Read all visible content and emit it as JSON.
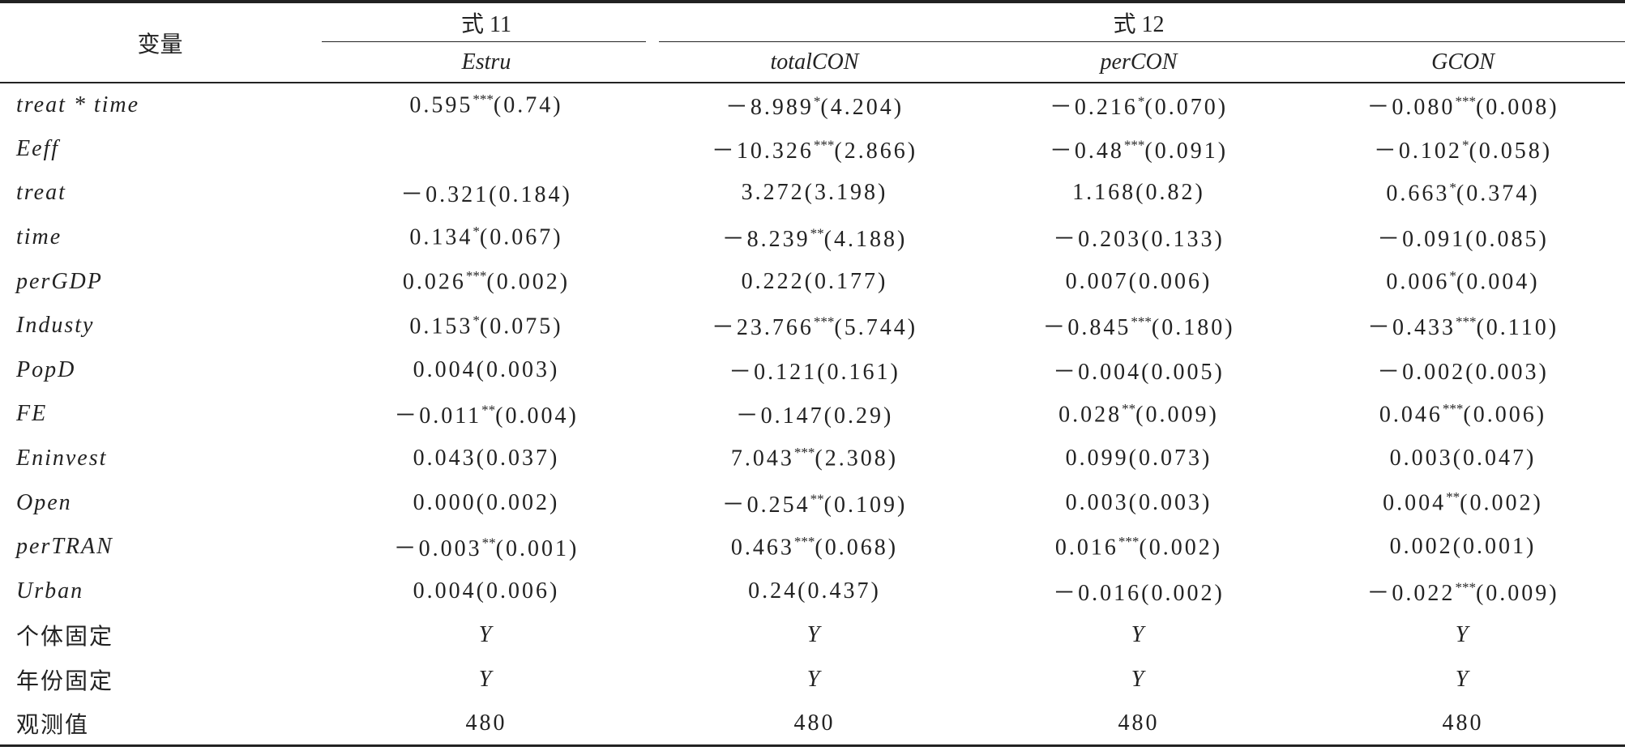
{
  "table": {
    "header": {
      "var": "变量",
      "groups": [
        "式 11",
        "式 12"
      ],
      "columns": [
        "Estru",
        "totalCON",
        "perCON",
        "GCON"
      ]
    },
    "rows": [
      [
        "treat * time",
        "0.595***(0.74)",
        "－8.989*(4.204)",
        "－0.216*(0.070)",
        "－0.080***(0.008)"
      ],
      [
        "Eeff",
        null,
        "－10.326***(2.866)",
        "－0.48***(0.091)",
        "－0.102*(0.058)"
      ],
      [
        "treat",
        "－0.321(0.184)",
        "3.272(3.198)",
        "1.168(0.82)",
        "0.663*(0.374)"
      ],
      [
        "time",
        "0.134*(0.067)",
        "－8.239**(4.188)",
        "－0.203(0.133)",
        "－0.091(0.085)"
      ],
      [
        "perGDP",
        "0.026***(0.002)",
        "0.222(0.177)",
        "0.007(0.006)",
        "0.006*(0.004)"
      ],
      [
        "Industy",
        "0.153*(0.075)",
        "－23.766***(5.744)",
        "－0.845***(0.180)",
        "－0.433***(0.110)"
      ],
      [
        "PopD",
        "0.004(0.003)",
        "－0.121(0.161)",
        "－0.004(0.005)",
        "－0.002(0.003)"
      ],
      [
        "FE",
        "－0.011**(0.004)",
        "－0.147(0.29)",
        "0.028**(0.009)",
        "0.046***(0.006)"
      ],
      [
        "Eninvest",
        "0.043(0.037)",
        "7.043***(2.308)",
        "0.099(0.073)",
        "0.003(0.047)"
      ],
      [
        "Open",
        "0.000(0.002)",
        "－0.254**(0.109)",
        "0.003(0.003)",
        "0.004**(0.002)"
      ],
      [
        "perTRAN",
        "－0.003**(0.001)",
        "0.463***(0.068)",
        "0.016***(0.002)",
        "0.002(0.001)"
      ],
      [
        "Urban",
        "0.004(0.006)",
        "0.24(0.437)",
        "－0.016(0.002)",
        "－0.022***(0.009)"
      ],
      [
        "个体固定",
        "Y",
        "Y",
        "Y",
        "Y"
      ],
      [
        "年份固定",
        "Y",
        "Y",
        "Y",
        "Y"
      ],
      [
        "观测值",
        "480",
        "480",
        "480",
        "480"
      ]
    ]
  }
}
